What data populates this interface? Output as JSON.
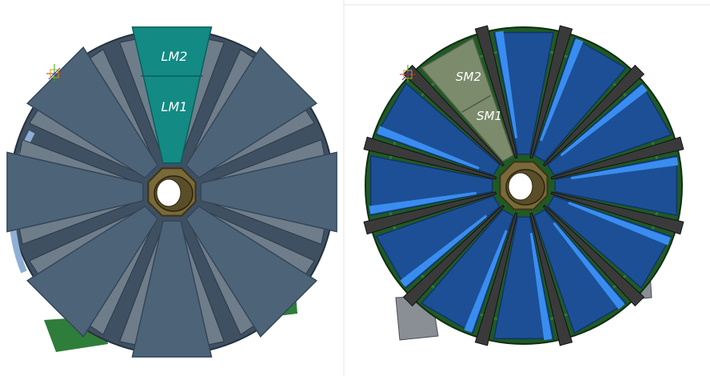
{
  "panels": {
    "left": {
      "labels": {
        "outer": "LM2",
        "inner": "LM1"
      },
      "colors": {
        "module": "#4d6378",
        "module_edge": "#33475a",
        "highlight": "#138a84",
        "highlight_edge": "#0b5f5b",
        "frame": "#3e5062",
        "side_trim": "#8fb0d4",
        "hub": "#7a6a3a",
        "base": "#2f7d3a"
      }
    },
    "right": {
      "labels": {
        "outer": "SM2",
        "inner": "SM1"
      },
      "colors": {
        "module": "#1d4f96",
        "module_edge": "#123468",
        "highlight": "#7b8b6c",
        "highlight_edge": "#4e5b44",
        "frame": "#1f5a24",
        "strut": "#3a3a3a",
        "trim": "#3a8df0",
        "hub": "#7a6a3a",
        "base": "#8a8f96"
      }
    }
  },
  "icons": {
    "axis_triad": "axis-triad-icon"
  }
}
